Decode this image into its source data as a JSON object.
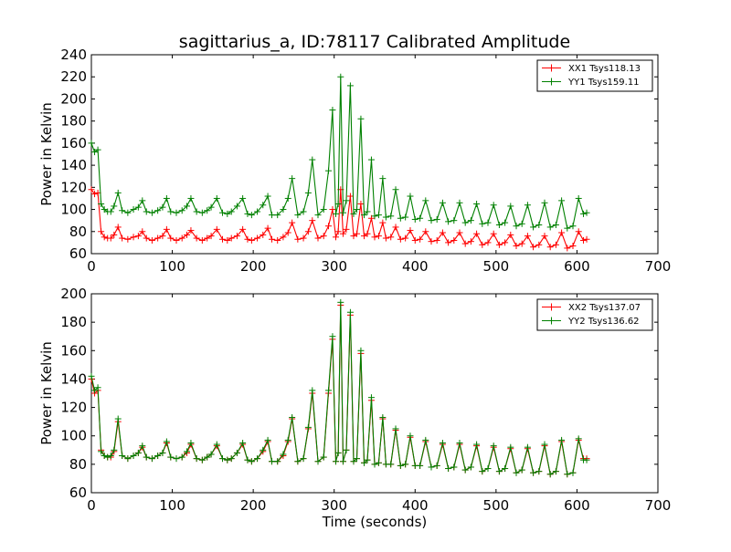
{
  "title": "sagittarius_a, ID:78117 Calibrated Amplitude",
  "chart_data": [
    {
      "type": "line",
      "xlabel": "",
      "ylabel": "Power in Kelvin",
      "xlim": [
        0,
        700
      ],
      "ylim": [
        60,
        240
      ],
      "xticks": [
        0,
        100,
        200,
        300,
        400,
        500,
        600,
        700
      ],
      "yticks": [
        60,
        80,
        100,
        120,
        140,
        160,
        180,
        200,
        220,
        240
      ],
      "grid": false,
      "legend_position": "top-right",
      "series": [
        {
          "name": "XX1 Tsys118.13",
          "color": "#ff0000",
          "x": [
            0,
            4,
            8,
            12,
            16,
            20,
            24,
            28,
            33,
            38,
            45,
            52,
            58,
            63,
            68,
            75,
            82,
            88,
            93,
            98,
            105,
            112,
            118,
            123,
            130,
            137,
            143,
            148,
            155,
            162,
            168,
            173,
            180,
            187,
            193,
            198,
            205,
            212,
            218,
            223,
            230,
            237,
            243,
            248,
            255,
            262,
            268,
            273,
            280,
            287,
            293,
            298,
            302,
            305,
            308,
            311,
            315,
            320,
            324,
            328,
            333,
            337,
            341,
            346,
            350,
            355,
            360,
            364,
            370,
            376,
            382,
            388,
            394,
            400,
            406,
            413,
            420,
            427,
            434,
            441,
            448,
            455,
            462,
            469,
            476,
            483,
            490,
            497,
            504,
            511,
            518,
            525,
            532,
            539,
            546,
            553,
            560,
            567,
            574,
            581,
            588,
            595,
            602,
            608,
            612
          ],
          "y": [
            118,
            114,
            115,
            80,
            75,
            74,
            74,
            77,
            84,
            74,
            73,
            75,
            76,
            80,
            74,
            72,
            74,
            76,
            82,
            74,
            72,
            74,
            77,
            81,
            74,
            72,
            74,
            76,
            82,
            73,
            72,
            74,
            76,
            82,
            73,
            72,
            74,
            77,
            83,
            73,
            72,
            75,
            79,
            88,
            73,
            74,
            80,
            90,
            74,
            76,
            85,
            100,
            75,
            80,
            118,
            78,
            82,
            112,
            76,
            78,
            105,
            76,
            78,
            92,
            75,
            76,
            88,
            74,
            75,
            84,
            73,
            74,
            81,
            72,
            73,
            80,
            71,
            72,
            79,
            70,
            72,
            79,
            69,
            71,
            78,
            68,
            70,
            78,
            68,
            70,
            77,
            67,
            69,
            76,
            66,
            68,
            76,
            66,
            68,
            79,
            65,
            67,
            80,
            72,
            73
          ]
        },
        {
          "name": "YY1 Tsys159.11",
          "color": "#008000",
          "x": [
            0,
            4,
            8,
            12,
            16,
            20,
            24,
            28,
            33,
            38,
            45,
            52,
            58,
            63,
            68,
            75,
            82,
            88,
            93,
            98,
            105,
            112,
            118,
            123,
            130,
            137,
            143,
            148,
            155,
            162,
            168,
            173,
            180,
            187,
            193,
            198,
            205,
            212,
            218,
            223,
            230,
            237,
            243,
            248,
            255,
            262,
            268,
            273,
            280,
            287,
            293,
            298,
            302,
            305,
            308,
            311,
            315,
            320,
            324,
            328,
            333,
            337,
            341,
            346,
            350,
            355,
            360,
            364,
            370,
            376,
            382,
            388,
            394,
            400,
            406,
            413,
            420,
            427,
            434,
            441,
            448,
            455,
            462,
            469,
            476,
            483,
            490,
            497,
            504,
            511,
            518,
            525,
            532,
            539,
            546,
            553,
            560,
            567,
            574,
            581,
            588,
            595,
            602,
            608,
            612
          ],
          "y": [
            160,
            152,
            154,
            105,
            100,
            98,
            98,
            103,
            115,
            99,
            97,
            100,
            102,
            108,
            98,
            97,
            99,
            102,
            110,
            98,
            97,
            99,
            103,
            110,
            98,
            97,
            99,
            102,
            110,
            97,
            96,
            98,
            103,
            110,
            96,
            95,
            98,
            104,
            112,
            95,
            95,
            100,
            110,
            128,
            95,
            98,
            115,
            145,
            95,
            100,
            135,
            190,
            96,
            105,
            220,
            97,
            108,
            212,
            96,
            100,
            182,
            95,
            98,
            145,
            94,
            95,
            128,
            93,
            94,
            118,
            92,
            93,
            112,
            91,
            92,
            108,
            90,
            91,
            106,
            89,
            90,
            106,
            88,
            90,
            105,
            87,
            88,
            104,
            86,
            88,
            103,
            85,
            87,
            104,
            84,
            86,
            106,
            84,
            86,
            108,
            83,
            85,
            110,
            96,
            97
          ]
        }
      ]
    },
    {
      "type": "line",
      "xlabel": "Time (seconds)",
      "ylabel": "Power in Kelvin",
      "xlim": [
        0,
        700
      ],
      "ylim": [
        60,
        200
      ],
      "xticks": [
        0,
        100,
        200,
        300,
        400,
        500,
        600,
        700
      ],
      "yticks": [
        60,
        80,
        100,
        120,
        140,
        160,
        180,
        200
      ],
      "grid": false,
      "legend_position": "top-right",
      "series": [
        {
          "name": "XX2 Tsys137.07",
          "color": "#ff0000",
          "x": [
            0,
            4,
            8,
            12,
            16,
            20,
            24,
            28,
            33,
            38,
            45,
            52,
            58,
            63,
            68,
            75,
            82,
            88,
            93,
            98,
            105,
            112,
            118,
            123,
            130,
            137,
            143,
            148,
            155,
            162,
            168,
            173,
            180,
            187,
            193,
            198,
            205,
            212,
            218,
            223,
            230,
            237,
            243,
            248,
            255,
            262,
            268,
            273,
            280,
            287,
            293,
            298,
            302,
            305,
            308,
            311,
            315,
            320,
            324,
            328,
            333,
            337,
            341,
            346,
            350,
            355,
            360,
            364,
            370,
            376,
            382,
            388,
            394,
            400,
            406,
            413,
            420,
            427,
            434,
            441,
            448,
            455,
            462,
            469,
            476,
            483,
            490,
            497,
            504,
            511,
            518,
            525,
            532,
            539,
            546,
            553,
            560,
            567,
            574,
            581,
            588,
            595,
            602,
            608,
            612
          ],
          "y": [
            140,
            130,
            132,
            90,
            86,
            85,
            85,
            89,
            110,
            86,
            84,
            86,
            88,
            92,
            85,
            84,
            86,
            88,
            95,
            85,
            84,
            85,
            88,
            94,
            84,
            83,
            85,
            87,
            93,
            84,
            83,
            84,
            88,
            94,
            83,
            82,
            84,
            89,
            96,
            82,
            82,
            86,
            96,
            112,
            82,
            84,
            105,
            130,
            82,
            85,
            130,
            168,
            82,
            88,
            192,
            82,
            90,
            185,
            82,
            84,
            158,
            81,
            83,
            125,
            80,
            81,
            112,
            80,
            80,
            104,
            79,
            80,
            99,
            79,
            79,
            96,
            78,
            79,
            94,
            77,
            78,
            94,
            76,
            78,
            93,
            75,
            77,
            92,
            75,
            77,
            91,
            74,
            76,
            91,
            74,
            75,
            93,
            73,
            75,
            96,
            73,
            74,
            97,
            84,
            84
          ]
        },
        {
          "name": "YY2 Tsys136.62",
          "color": "#008000",
          "x": [
            0,
            4,
            8,
            12,
            16,
            20,
            24,
            28,
            33,
            38,
            45,
            52,
            58,
            63,
            68,
            75,
            82,
            88,
            93,
            98,
            105,
            112,
            118,
            123,
            130,
            137,
            143,
            148,
            155,
            162,
            168,
            173,
            180,
            187,
            193,
            198,
            205,
            212,
            218,
            223,
            230,
            237,
            243,
            248,
            255,
            262,
            268,
            273,
            280,
            287,
            293,
            298,
            302,
            305,
            308,
            311,
            315,
            320,
            324,
            328,
            333,
            337,
            341,
            346,
            350,
            355,
            360,
            364,
            370,
            376,
            382,
            388,
            394,
            400,
            406,
            413,
            420,
            427,
            434,
            441,
            448,
            455,
            462,
            469,
            476,
            483,
            490,
            497,
            504,
            511,
            518,
            525,
            532,
            539,
            546,
            553,
            560,
            567,
            574,
            581,
            588,
            595,
            602,
            608,
            612
          ],
          "y": [
            142,
            132,
            134,
            89,
            86,
            85,
            86,
            90,
            112,
            86,
            84,
            86,
            88,
            93,
            85,
            84,
            86,
            88,
            96,
            85,
            84,
            85,
            89,
            95,
            84,
            83,
            85,
            87,
            94,
            84,
            83,
            84,
            88,
            95,
            83,
            82,
            84,
            90,
            97,
            82,
            82,
            87,
            97,
            113,
            82,
            84,
            106,
            132,
            82,
            85,
            132,
            170,
            82,
            88,
            194,
            82,
            90,
            187,
            82,
            84,
            160,
            81,
            83,
            127,
            80,
            81,
            113,
            80,
            80,
            105,
            79,
            80,
            100,
            79,
            79,
            97,
            78,
            79,
            95,
            77,
            78,
            95,
            76,
            78,
            94,
            75,
            77,
            93,
            75,
            77,
            92,
            74,
            76,
            92,
            74,
            75,
            94,
            73,
            75,
            97,
            73,
            74,
            98,
            83,
            83
          ]
        }
      ]
    }
  ]
}
